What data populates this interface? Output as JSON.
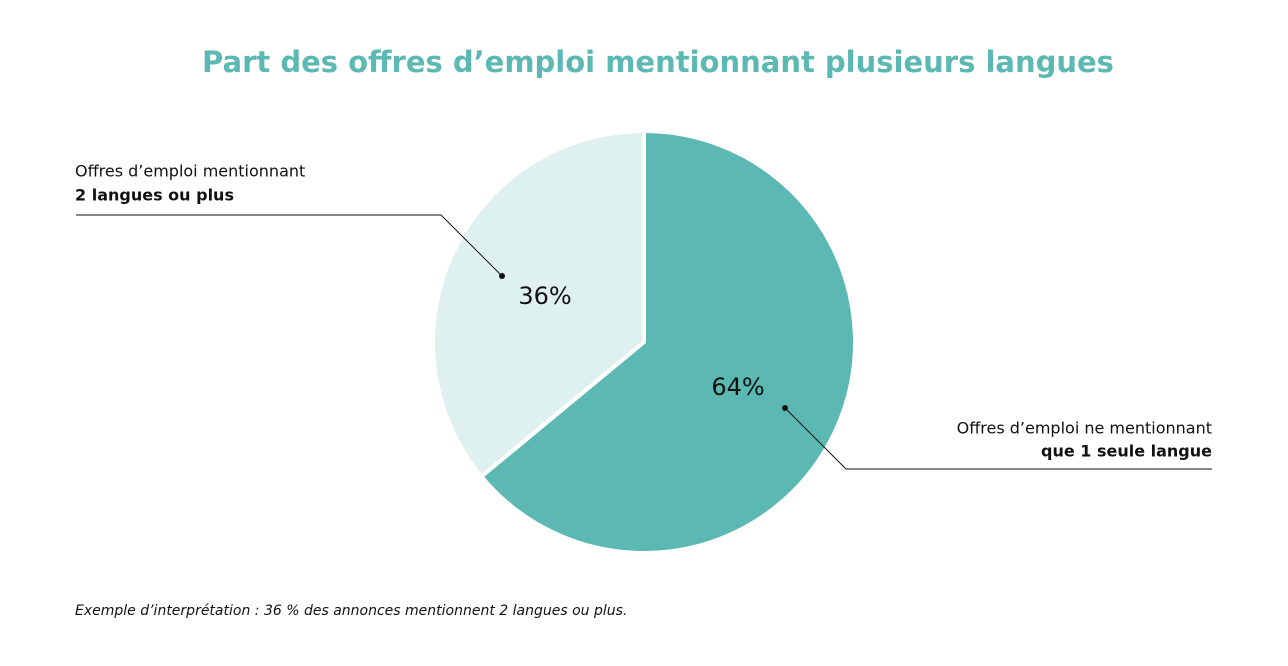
{
  "chart_data": {
    "type": "pie",
    "title": "Part des offres d’emploi mentionnant plusieurs langues",
    "categories": [
      [
        "Offres d’emploi ne mentionnant",
        "que 1 seule langue"
      ],
      [
        "Offres d’emploi mentionnant",
        "2 langues ou plus"
      ]
    ],
    "values": [
      64,
      36
    ],
    "value_labels": [
      "64%",
      "36%"
    ],
    "colors": [
      "#5cb8b2",
      "#dff1ef"
    ],
    "note": "Exemple d’interprétation : 36 % des annonces mentionnent 2 langues ou plus."
  }
}
